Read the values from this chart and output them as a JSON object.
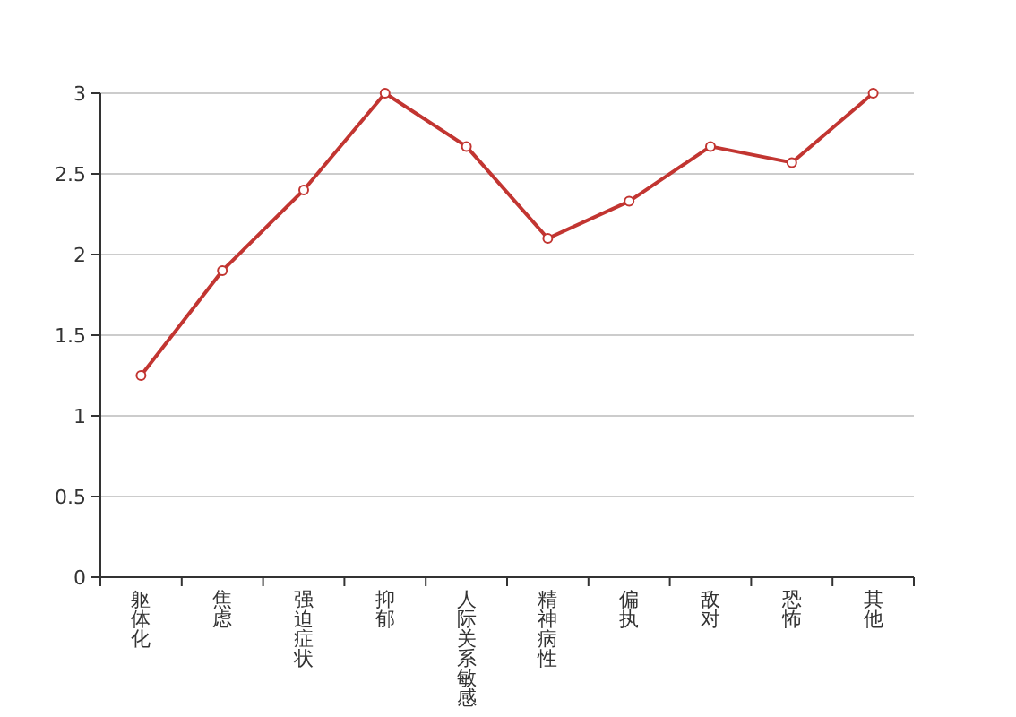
{
  "chart_data": {
    "type": "line",
    "categories": [
      "躯体化",
      "焦虑",
      "强迫症状",
      "抑郁",
      "人际关系敏感",
      "精神病性",
      "偏执",
      "敌对",
      "恐怖",
      "其他"
    ],
    "series": [
      {
        "color": "#c23531",
        "values": [
          1.25,
          1.9,
          2.4,
          3,
          2.67,
          2.1,
          2.33,
          2.67,
          2.57,
          3
        ]
      }
    ],
    "ylim": [
      0,
      3
    ],
    "yticks": [
      0,
      0.5,
      1,
      1.5,
      2,
      2.5,
      3
    ],
    "grid": "y",
    "marker": "circle",
    "line_style": "solid"
  }
}
